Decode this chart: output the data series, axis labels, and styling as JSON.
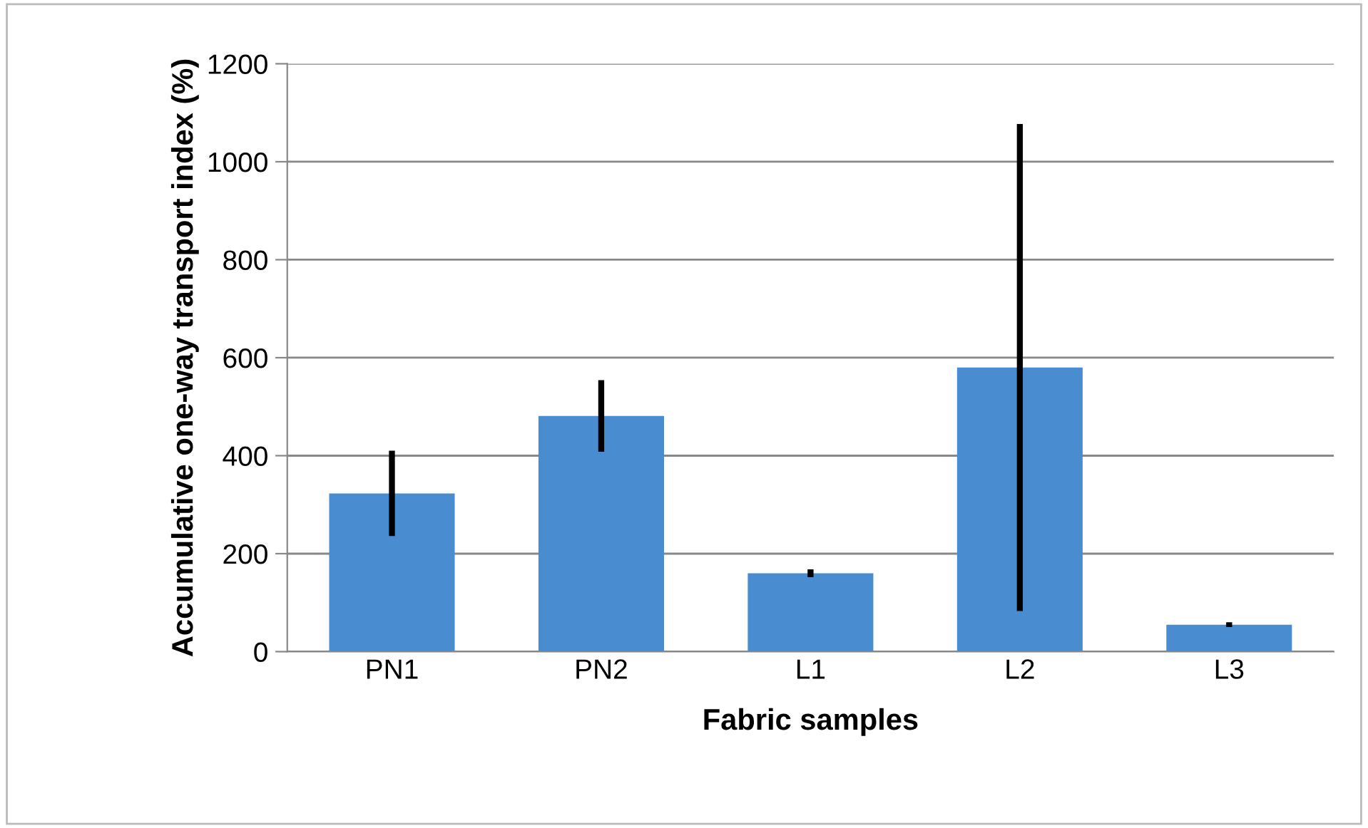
{
  "chart_data": {
    "type": "bar",
    "xlabel": "Fabric samples",
    "ylabel": "Accumulative one-way transport index (%)",
    "categories": [
      "PN1",
      "PN2",
      "L1",
      "L2",
      "L3"
    ],
    "values": [
      323,
      481,
      160,
      580,
      55
    ],
    "errors": [
      87,
      73,
      8,
      497,
      5
    ],
    "color": "#4a8cd0",
    "ylim": [
      0,
      1200
    ],
    "yticks": [
      0,
      200,
      400,
      600,
      800,
      1000,
      1200
    ],
    "grid": "y",
    "legend": false
  }
}
